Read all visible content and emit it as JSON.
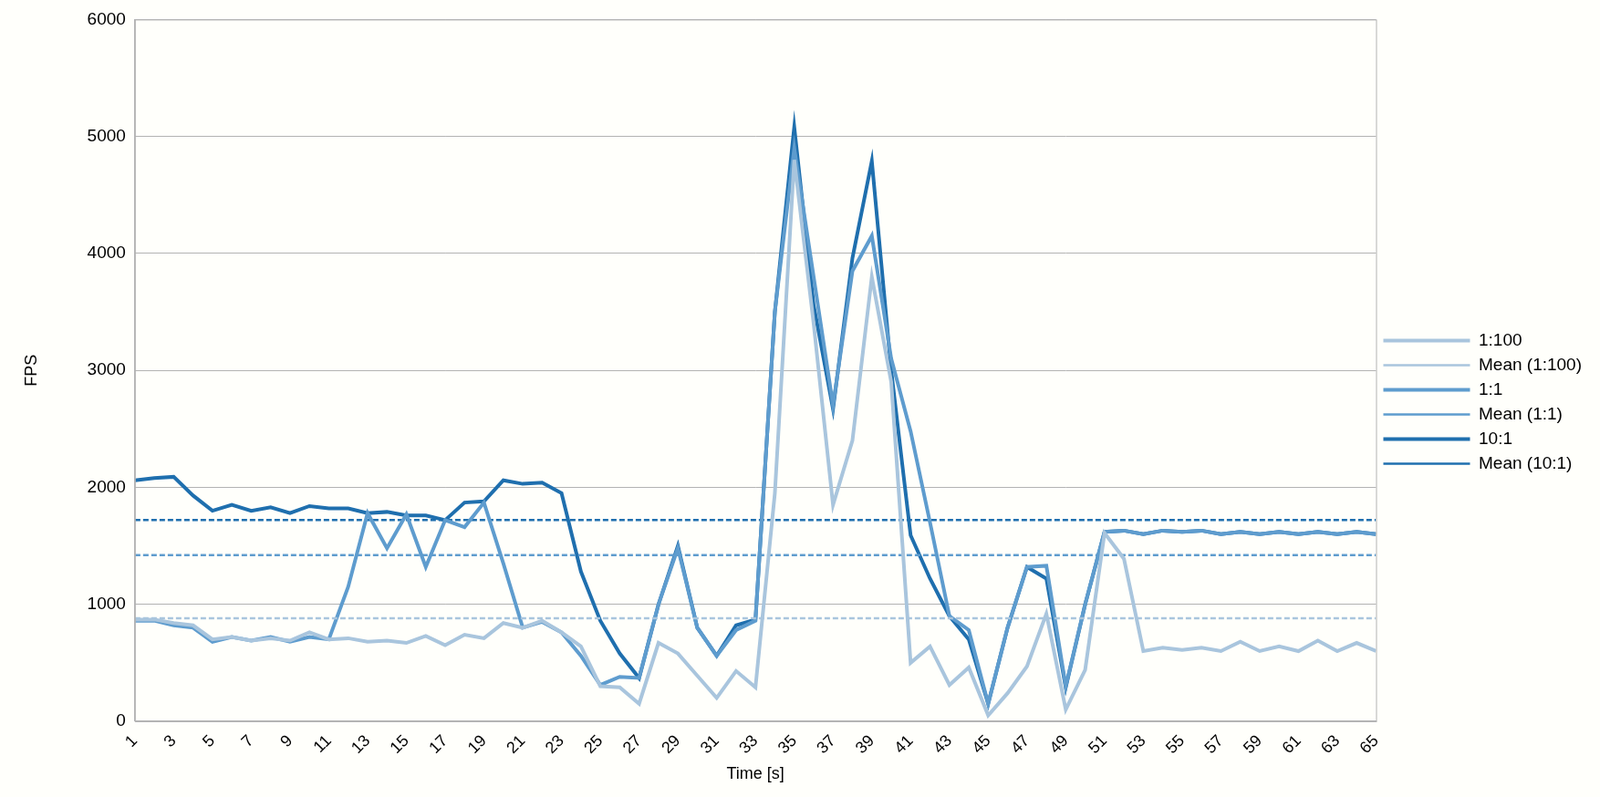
{
  "chart_data": {
    "type": "line",
    "x_label": "Time [s]",
    "y_label": "FPS",
    "categories": [
      1,
      null,
      3,
      null,
      5,
      null,
      7,
      null,
      9,
      null,
      11,
      null,
      13,
      null,
      15,
      null,
      17,
      null,
      19,
      null,
      21,
      null,
      23,
      null,
      25,
      null,
      27,
      null,
      29,
      null,
      31,
      null,
      33,
      null,
      35,
      null,
      37,
      null,
      39,
      null,
      41,
      null,
      43,
      null,
      45,
      null,
      47,
      null,
      49,
      null,
      51,
      null,
      53,
      null,
      55,
      null,
      57,
      null,
      59,
      null,
      61,
      null,
      63,
      null,
      65
    ],
    "ylim": [
      0,
      6000
    ],
    "yticks": [
      0,
      1000,
      2000,
      3000,
      4000,
      5000,
      6000
    ],
    "grid": true,
    "legend": "right",
    "series": [
      {
        "name": "1:100",
        "color": "#a9c5dd",
        "line_style": "solid",
        "values": [
          870,
          870,
          840,
          820,
          700,
          720,
          690,
          710,
          690,
          760,
          700,
          710,
          680,
          690,
          670,
          730,
          650,
          740,
          710,
          840,
          800,
          860,
          760,
          640,
          300,
          290,
          150,
          670,
          580,
          390,
          200,
          430,
          290,
          1950,
          4800,
          3400,
          1850,
          2400,
          3800,
          2900,
          500,
          640,
          310,
          460,
          50,
          240,
          470,
          920,
          100,
          440,
          1610,
          1390,
          600,
          630,
          610,
          630,
          600,
          680,
          600,
          640,
          600,
          690,
          600,
          670,
          600
        ]
      },
      {
        "name": "Mean (1:100)",
        "color": "#a9c5dd",
        "line_style": "dashed",
        "values": [
          880,
          880,
          880,
          880,
          880,
          880,
          880,
          880,
          880,
          880,
          880,
          880,
          880,
          880,
          880,
          880,
          880,
          880,
          880,
          880,
          880,
          880,
          880,
          880,
          880,
          880,
          880,
          880,
          880,
          880,
          880,
          880,
          880,
          880,
          880,
          880,
          880,
          880,
          880,
          880,
          880,
          880,
          880,
          880,
          880,
          880,
          880,
          880,
          880,
          880,
          880,
          880,
          880,
          880,
          880,
          880,
          880,
          880,
          880,
          880,
          880,
          880,
          880,
          880,
          880
        ]
      },
      {
        "name": "1:1",
        "color": "#5e9cce",
        "line_style": "solid",
        "values": [
          860,
          860,
          820,
          800,
          680,
          720,
          690,
          720,
          680,
          720,
          700,
          1150,
          1780,
          1480,
          1770,
          1320,
          1720,
          1660,
          1870,
          1350,
          800,
          850,
          760,
          560,
          310,
          380,
          370,
          1000,
          1480,
          800,
          560,
          780,
          860,
          3500,
          4900,
          3800,
          2700,
          3850,
          4150,
          3100,
          2480,
          1700,
          900,
          780,
          150,
          800,
          1320,
          1330,
          300,
          1000,
          1620,
          1630,
          1600,
          1630,
          1620,
          1630,
          1600,
          1620,
          1600,
          1620,
          1600,
          1620,
          1600,
          1620,
          1600
        ]
      },
      {
        "name": "Mean (1:1)",
        "color": "#5e9cce",
        "line_style": "dashed",
        "values": [
          1420,
          1420,
          1420,
          1420,
          1420,
          1420,
          1420,
          1420,
          1420,
          1420,
          1420,
          1420,
          1420,
          1420,
          1420,
          1420,
          1420,
          1420,
          1420,
          1420,
          1420,
          1420,
          1420,
          1420,
          1420,
          1420,
          1420,
          1420,
          1420,
          1420,
          1420,
          1420,
          1420,
          1420,
          1420,
          1420,
          1420,
          1420,
          1420,
          1420,
          1420,
          1420,
          1420,
          1420,
          1420,
          1420,
          1420,
          1420,
          1420,
          1420,
          1420,
          1420,
          1420,
          1420,
          1420,
          1420,
          1420,
          1420,
          1420,
          1420,
          1420,
          1420,
          1420,
          1420,
          1420
        ]
      },
      {
        "name": "10:1",
        "color": "#1f6fae",
        "line_style": "solid",
        "values": [
          2060,
          2080,
          2090,
          1930,
          1800,
          1850,
          1800,
          1830,
          1780,
          1840,
          1820,
          1820,
          1780,
          1790,
          1760,
          1760,
          1720,
          1870,
          1880,
          2060,
          2030,
          2040,
          1950,
          1280,
          860,
          580,
          370,
          1000,
          1500,
          800,
          560,
          820,
          870,
          3500,
          5080,
          3560,
          2670,
          3960,
          4790,
          3000,
          1590,
          1220,
          900,
          700,
          150,
          800,
          1320,
          1220,
          290,
          1000,
          1620,
          1630,
          1600,
          1630,
          1620,
          1630,
          1600,
          1620,
          1600,
          1620,
          1600,
          1620,
          1600,
          1620,
          1600
        ]
      },
      {
        "name": "Mean (10:1)",
        "color": "#1f6fae",
        "line_style": "dashed",
        "values": [
          1720,
          1720,
          1720,
          1720,
          1720,
          1720,
          1720,
          1720,
          1720,
          1720,
          1720,
          1720,
          1720,
          1720,
          1720,
          1720,
          1720,
          1720,
          1720,
          1720,
          1720,
          1720,
          1720,
          1720,
          1720,
          1720,
          1720,
          1720,
          1720,
          1720,
          1720,
          1720,
          1720,
          1720,
          1720,
          1720,
          1720,
          1720,
          1720,
          1720,
          1720,
          1720,
          1720,
          1720,
          1720,
          1720,
          1720,
          1720,
          1720,
          1720,
          1720,
          1720,
          1720,
          1720,
          1720,
          1720,
          1720,
          1720,
          1720,
          1720,
          1720,
          1720,
          1720,
          1720,
          1720
        ]
      }
    ]
  }
}
